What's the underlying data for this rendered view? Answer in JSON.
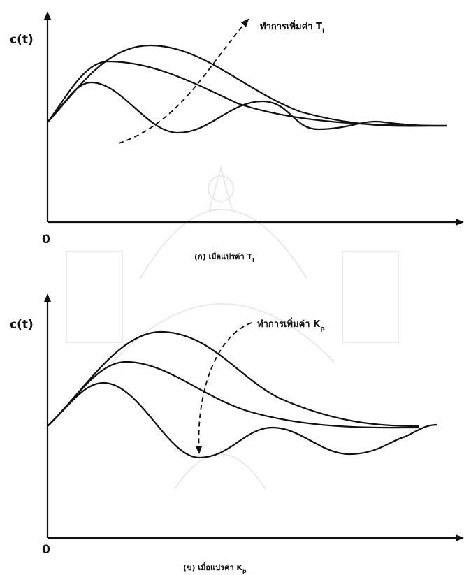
{
  "top": {
    "y_label": "c(t)",
    "origin": "0",
    "annotation": "ทำการเพิ่มค่า T",
    "annotation_sub": "I",
    "caption": "(ก) เมื่อแปรค่า T",
    "caption_sub": "I"
  },
  "bottom": {
    "y_label": "c(t)",
    "origin": "0",
    "annotation": "ทำการเพิ่มค่า K",
    "annotation_sub": "p",
    "caption": "(ข) เมื่อแปรค่า K",
    "caption_sub": "p"
  }
}
